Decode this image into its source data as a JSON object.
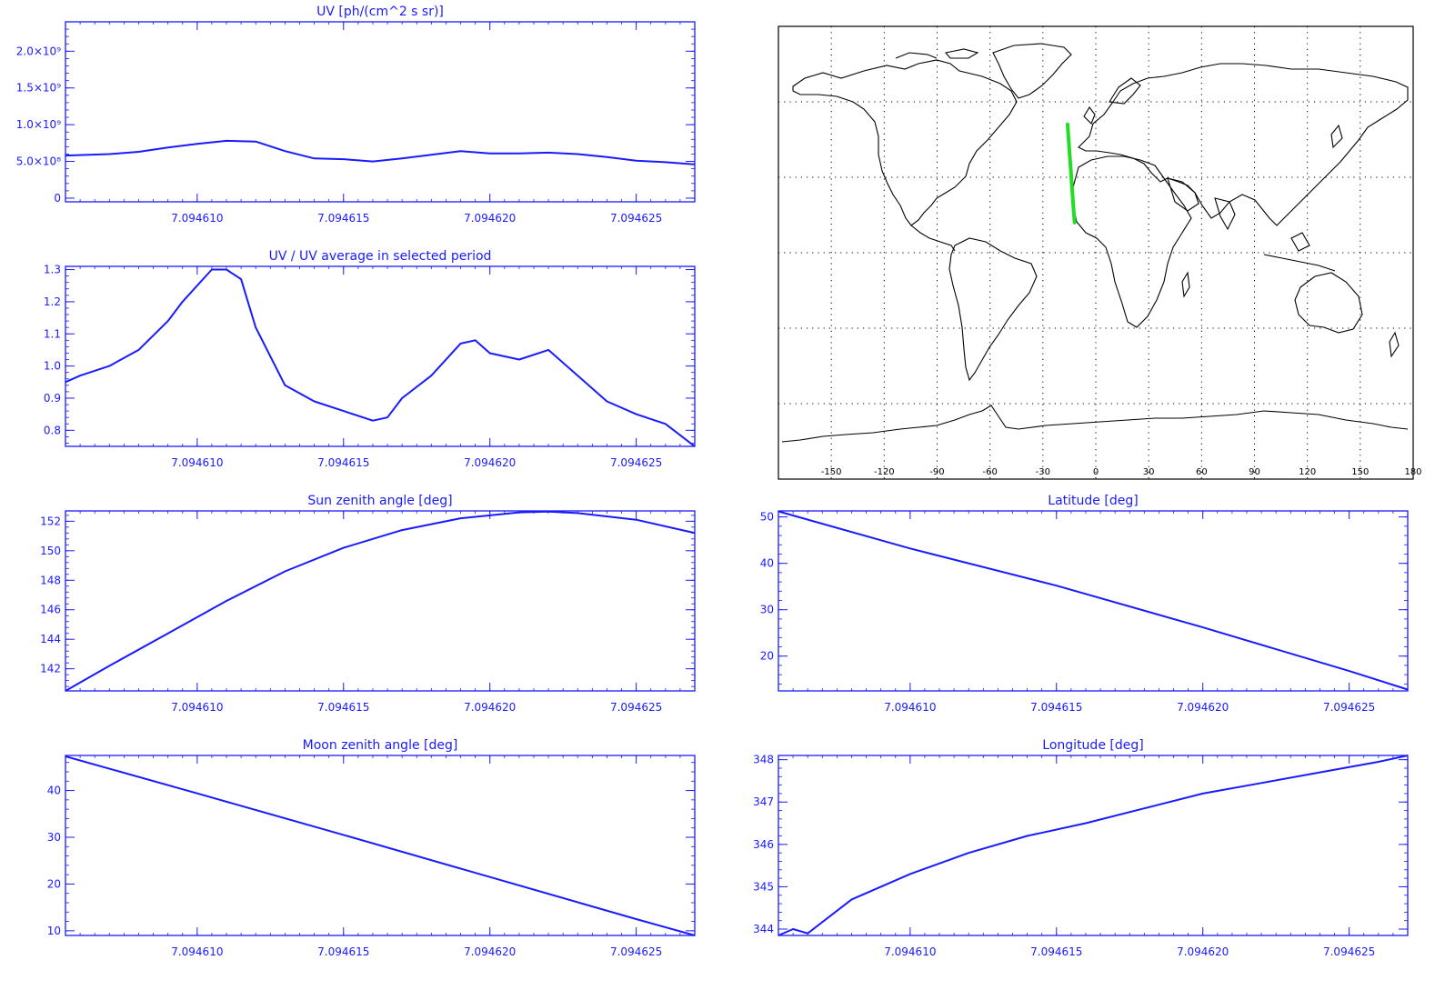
{
  "colors": {
    "line": "#1a1aff",
    "axis": "#1a1aff",
    "track": "#22dd22",
    "map": "#000000",
    "background": "#ffffff"
  },
  "chart_data": [
    {
      "id": "uv",
      "type": "line",
      "title": "UV [ph/(cm^2 s sr)]",
      "xlabel": "",
      "ylabel": "",
      "xlim": [
        7.0946055,
        7.094627
      ],
      "ylim": [
        -50000000,
        2400000000
      ],
      "x_ticks": [
        7.09461,
        7.094615,
        7.09462,
        7.094625
      ],
      "x_tick_labels": [
        "7.094610",
        "7.094615",
        "7.094620",
        "7.094625"
      ],
      "y_ticks": [
        0,
        500000000,
        1000000000,
        1500000000,
        2000000000
      ],
      "y_tick_labels": [
        "0",
        "5.0×10⁸",
        "1.0×10⁹",
        "1.5×10⁹",
        "2.0×10⁹"
      ],
      "series": [
        {
          "x": [
            7.0946055,
            7.094607,
            7.094608,
            7.094609,
            7.09461,
            7.094611,
            7.094612,
            7.094613,
            7.094614,
            7.094615,
            7.094616,
            7.094617,
            7.094618,
            7.094619,
            7.09462,
            7.094621,
            7.094622,
            7.094623,
            7.094624,
            7.094625,
            7.094626,
            7.094627
          ],
          "y": [
            580000000,
            600000000,
            630000000,
            690000000,
            740000000,
            780000000,
            770000000,
            640000000,
            540000000,
            530000000,
            500000000,
            540000000,
            590000000,
            640000000,
            610000000,
            610000000,
            620000000,
            600000000,
            560000000,
            510000000,
            490000000,
            460000000
          ]
        }
      ]
    },
    {
      "id": "ratio",
      "type": "line",
      "title": "UV / UV average in selected period",
      "xlabel": "",
      "ylabel": "",
      "xlim": [
        7.0946055,
        7.094627
      ],
      "ylim": [
        0.75,
        1.31
      ],
      "x_ticks": [
        7.09461,
        7.094615,
        7.09462,
        7.094625
      ],
      "x_tick_labels": [
        "7.094610",
        "7.094615",
        "7.094620",
        "7.094625"
      ],
      "y_ticks": [
        0.8,
        0.9,
        1.0,
        1.1,
        1.2,
        1.3
      ],
      "y_tick_labels": [
        "0.8",
        "0.9",
        "1.0",
        "1.1",
        "1.2",
        "1.3"
      ],
      "series": [
        {
          "x": [
            7.0946055,
            7.094606,
            7.094607,
            7.094608,
            7.094609,
            7.0946095,
            7.09461,
            7.0946105,
            7.094611,
            7.0946115,
            7.094612,
            7.094613,
            7.094614,
            7.094615,
            7.094616,
            7.0946165,
            7.094617,
            7.094618,
            7.094619,
            7.0946195,
            7.09462,
            7.094621,
            7.094622,
            7.094623,
            7.094624,
            7.094625,
            7.094626,
            7.094627
          ],
          "y": [
            0.95,
            0.97,
            1.0,
            1.05,
            1.14,
            1.2,
            1.25,
            1.3,
            1.3,
            1.27,
            1.12,
            0.94,
            0.89,
            0.86,
            0.83,
            0.84,
            0.9,
            0.97,
            1.07,
            1.08,
            1.04,
            1.02,
            1.05,
            0.97,
            0.89,
            0.85,
            0.82,
            0.75
          ]
        }
      ]
    },
    {
      "id": "sun",
      "type": "line",
      "title": "Sun zenith angle [deg]",
      "xlabel": "",
      "ylabel": "",
      "xlim": [
        7.0946055,
        7.094627
      ],
      "ylim": [
        140.5,
        152.7
      ],
      "x_ticks": [
        7.09461,
        7.094615,
        7.09462,
        7.094625
      ],
      "x_tick_labels": [
        "7.094610",
        "7.094615",
        "7.094620",
        "7.094625"
      ],
      "y_ticks": [
        142,
        144,
        146,
        148,
        150,
        152
      ],
      "y_tick_labels": [
        "142",
        "144",
        "146",
        "148",
        "150",
        "152"
      ],
      "series": [
        {
          "x": [
            7.0946055,
            7.094607,
            7.094609,
            7.094611,
            7.094613,
            7.094615,
            7.094617,
            7.094619,
            7.094621,
            7.094622,
            7.094623,
            7.094625,
            7.094627
          ],
          "y": [
            140.5,
            142.2,
            144.4,
            146.6,
            148.6,
            150.2,
            151.4,
            152.2,
            152.6,
            152.65,
            152.55,
            152.1,
            151.2
          ]
        }
      ]
    },
    {
      "id": "lat",
      "type": "line",
      "title": "Latitude [deg]",
      "xlabel": "",
      "ylabel": "",
      "xlim": [
        7.0946055,
        7.094627
      ],
      "ylim": [
        12.5,
        51.3
      ],
      "x_ticks": [
        7.09461,
        7.094615,
        7.09462,
        7.094625
      ],
      "x_tick_labels": [
        "7.094610",
        "7.094615",
        "7.094620",
        "7.094625"
      ],
      "y_ticks": [
        20,
        30,
        40,
        50
      ],
      "y_tick_labels": [
        "20",
        "30",
        "40",
        "50"
      ],
      "series": [
        {
          "x": [
            7.0946055,
            7.09461,
            7.094615,
            7.09462,
            7.094625,
            7.094627
          ],
          "y": [
            51.2,
            43.2,
            35.2,
            26.2,
            16.8,
            12.8
          ]
        }
      ]
    },
    {
      "id": "moon",
      "type": "line",
      "title": "Moon zenith angle [deg]",
      "xlabel": "",
      "ylabel": "",
      "xlim": [
        7.0946055,
        7.094627
      ],
      "ylim": [
        9,
        47.5
      ],
      "x_ticks": [
        7.09461,
        7.094615,
        7.09462,
        7.094625
      ],
      "x_tick_labels": [
        "7.094610",
        "7.094615",
        "7.094620",
        "7.094625"
      ],
      "y_ticks": [
        10,
        20,
        30,
        40
      ],
      "y_tick_labels": [
        "10",
        "20",
        "30",
        "40"
      ],
      "series": [
        {
          "x": [
            7.0946055,
            7.09461,
            7.094615,
            7.09462,
            7.094625,
            7.094627
          ],
          "y": [
            47.3,
            39.4,
            30.5,
            21.5,
            12.5,
            9.0
          ]
        }
      ]
    },
    {
      "id": "lon",
      "type": "line",
      "title": "Longitude [deg]",
      "xlabel": "",
      "ylabel": "",
      "xlim": [
        7.0946055,
        7.094627
      ],
      "ylim": [
        343.85,
        348.1
      ],
      "x_ticks": [
        7.09461,
        7.094615,
        7.09462,
        7.094625
      ],
      "x_tick_labels": [
        "7.094610",
        "7.094615",
        "7.094620",
        "7.094625"
      ],
      "y_ticks": [
        344,
        345,
        346,
        347,
        348
      ],
      "y_tick_labels": [
        "344",
        "345",
        "346",
        "347",
        "348"
      ],
      "series": [
        {
          "x": [
            7.0946055,
            7.094606,
            7.0946065,
            7.094608,
            7.09461,
            7.094612,
            7.094614,
            7.094616,
            7.094618,
            7.09462,
            7.094622,
            7.094624,
            7.094626,
            7.094627
          ],
          "y": [
            343.85,
            344.0,
            343.9,
            344.7,
            345.3,
            345.8,
            346.2,
            346.5,
            346.85,
            347.2,
            347.45,
            347.7,
            347.95,
            348.1
          ]
        }
      ]
    }
  ],
  "map": {
    "type": "map",
    "x_ticks": [
      -150,
      -120,
      -90,
      -60,
      -30,
      0,
      30,
      60,
      90,
      120,
      150,
      180
    ],
    "x_tick_labels": [
      "-150",
      "-120",
      "-90",
      "-60",
      "-30",
      "0",
      "30",
      "60",
      "90",
      "120",
      "150",
      "180"
    ],
    "lat_gridlines": [
      -60,
      -30,
      0,
      30,
      60
    ],
    "track": {
      "lon": [
        -16,
        -15.5,
        -15,
        -14.5,
        -14,
        -13.5,
        -13,
        -12.5,
        -12
      ],
      "lat": [
        51,
        46,
        41,
        36,
        31,
        26,
        21,
        16,
        12
      ]
    }
  }
}
